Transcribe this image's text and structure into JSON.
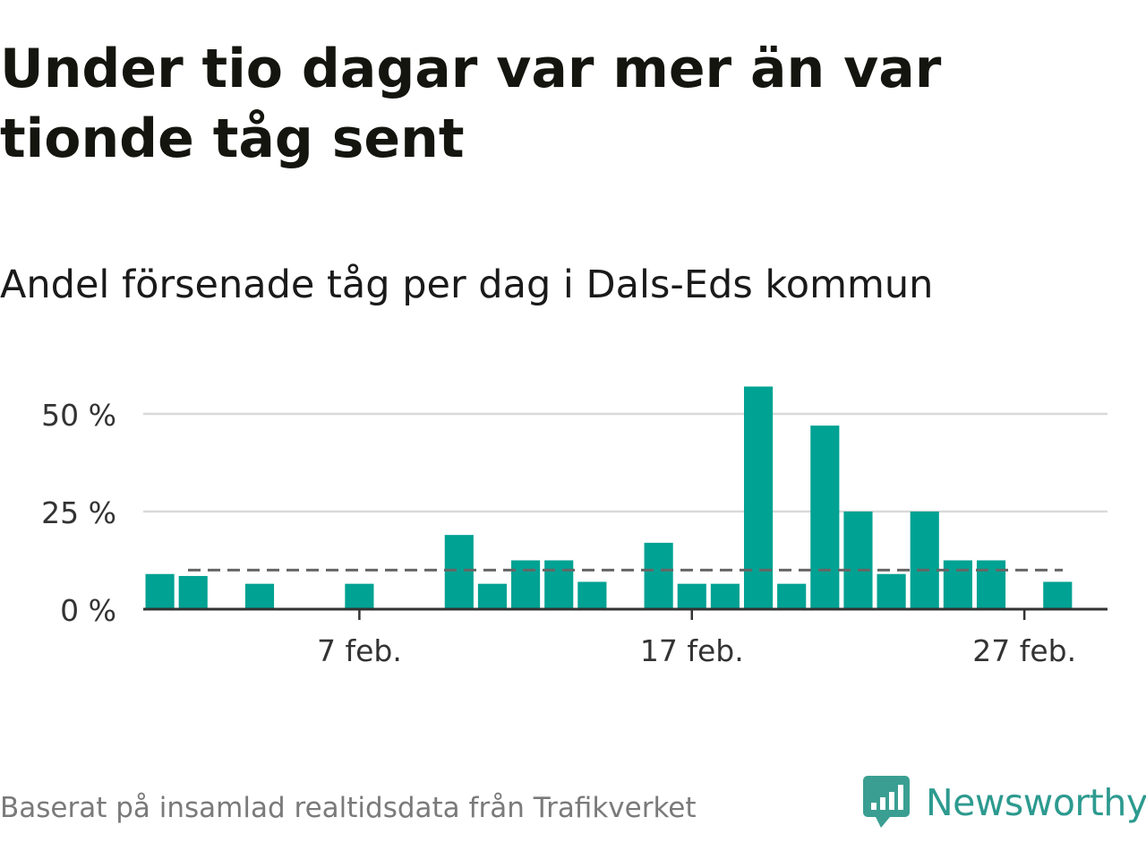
{
  "title": "Under tio dagar var mer än var tionde tåg sent",
  "subtitle": "Andel försenade tåg per dag i Dals-Eds kommun",
  "footer": "Baserat på insamlad realtidsdata från Trafikverket",
  "brand": {
    "name": "Newsworthy",
    "icon": "newsworthy-logo-icon",
    "color": "#2d9a8f"
  },
  "chart_data": {
    "type": "bar",
    "x": [
      1,
      2,
      3,
      4,
      5,
      6,
      7,
      8,
      9,
      10,
      11,
      12,
      13,
      14,
      15,
      16,
      17,
      18,
      19,
      20,
      21,
      22,
      23,
      24,
      25,
      26,
      27,
      28
    ],
    "values": [
      9,
      8.5,
      0,
      6.5,
      0,
      0,
      6.5,
      0,
      0,
      19,
      6.5,
      12.5,
      12.5,
      7,
      0,
      17,
      6.5,
      6.5,
      57,
      6.5,
      47,
      25,
      9,
      25,
      12.5,
      12.5,
      0,
      7
    ],
    "reference_line": {
      "value": 10,
      "style": "dashed",
      "color": "#666666"
    },
    "yticks": [
      0,
      25,
      50
    ],
    "ytick_labels": [
      "0 %",
      "25 %",
      "50 %"
    ],
    "xtick_positions": [
      7,
      17,
      27
    ],
    "xtick_labels": [
      "7 feb.",
      "17 feb.",
      "27 feb."
    ],
    "ylim": [
      0,
      60
    ],
    "xlim": [
      0.5,
      29.5
    ],
    "grid": true,
    "bar_color": "#00a293"
  }
}
